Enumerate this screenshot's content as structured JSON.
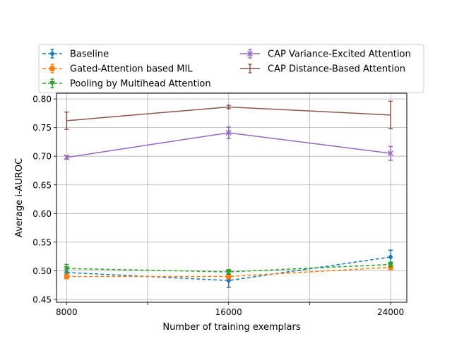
{
  "chart_data": {
    "type": "line",
    "title": "",
    "xlabel": "Number of training exemplars",
    "ylabel": "Average i-AUROC",
    "x": [
      8000,
      16000,
      24000
    ],
    "xlim": [
      7500,
      24800
    ],
    "ylim": [
      0.445,
      0.81
    ],
    "x_ticks": [
      8000,
      12000,
      16000,
      20000,
      24000
    ],
    "x_tick_labels": [
      "8000",
      "",
      "16000",
      "",
      "24000"
    ],
    "y_ticks": [
      0.45,
      0.5,
      0.55,
      0.6,
      0.65,
      0.7,
      0.75,
      0.8
    ],
    "y_tick_labels": [
      "0.45",
      "0.50",
      "0.55",
      "0.60",
      "0.65",
      "0.70",
      "0.75",
      "0.80"
    ],
    "grid": true,
    "legend_placement": "top, above plot, two columns",
    "series": [
      {
        "name": "Baseline",
        "color": "#1f77b4",
        "marker": "circle",
        "dashed": true,
        "values": [
          0.497,
          0.483,
          0.524
        ],
        "err": [
          0.005,
          0.012,
          0.012
        ]
      },
      {
        "name": "Gated-Attention based MIL",
        "color": "#ff7f0e",
        "marker": "square",
        "dashed": true,
        "values": [
          0.49,
          0.49,
          0.506
        ],
        "err": [
          0.004,
          0.004,
          0.004
        ]
      },
      {
        "name": "Pooling by Multihead Attention",
        "color": "#2ca02c",
        "marker": "triangle-down",
        "dashed": true,
        "values": [
          0.504,
          0.498,
          0.511
        ],
        "err": [
          0.007,
          0.004,
          0.004
        ]
      },
      {
        "name": "CAP Variance-Excited Attention",
        "color": "#9467bd",
        "marker": "x",
        "dashed": false,
        "values": [
          0.698,
          0.741,
          0.705
        ],
        "err": [
          0.003,
          0.01,
          0.012
        ]
      },
      {
        "name": "CAP Distance-Based Attention",
        "color": "#8c564b",
        "marker": "none",
        "dashed": false,
        "values": [
          0.762,
          0.786,
          0.772
        ],
        "err": [
          0.015,
          0.003,
          0.024
        ]
      }
    ]
  }
}
